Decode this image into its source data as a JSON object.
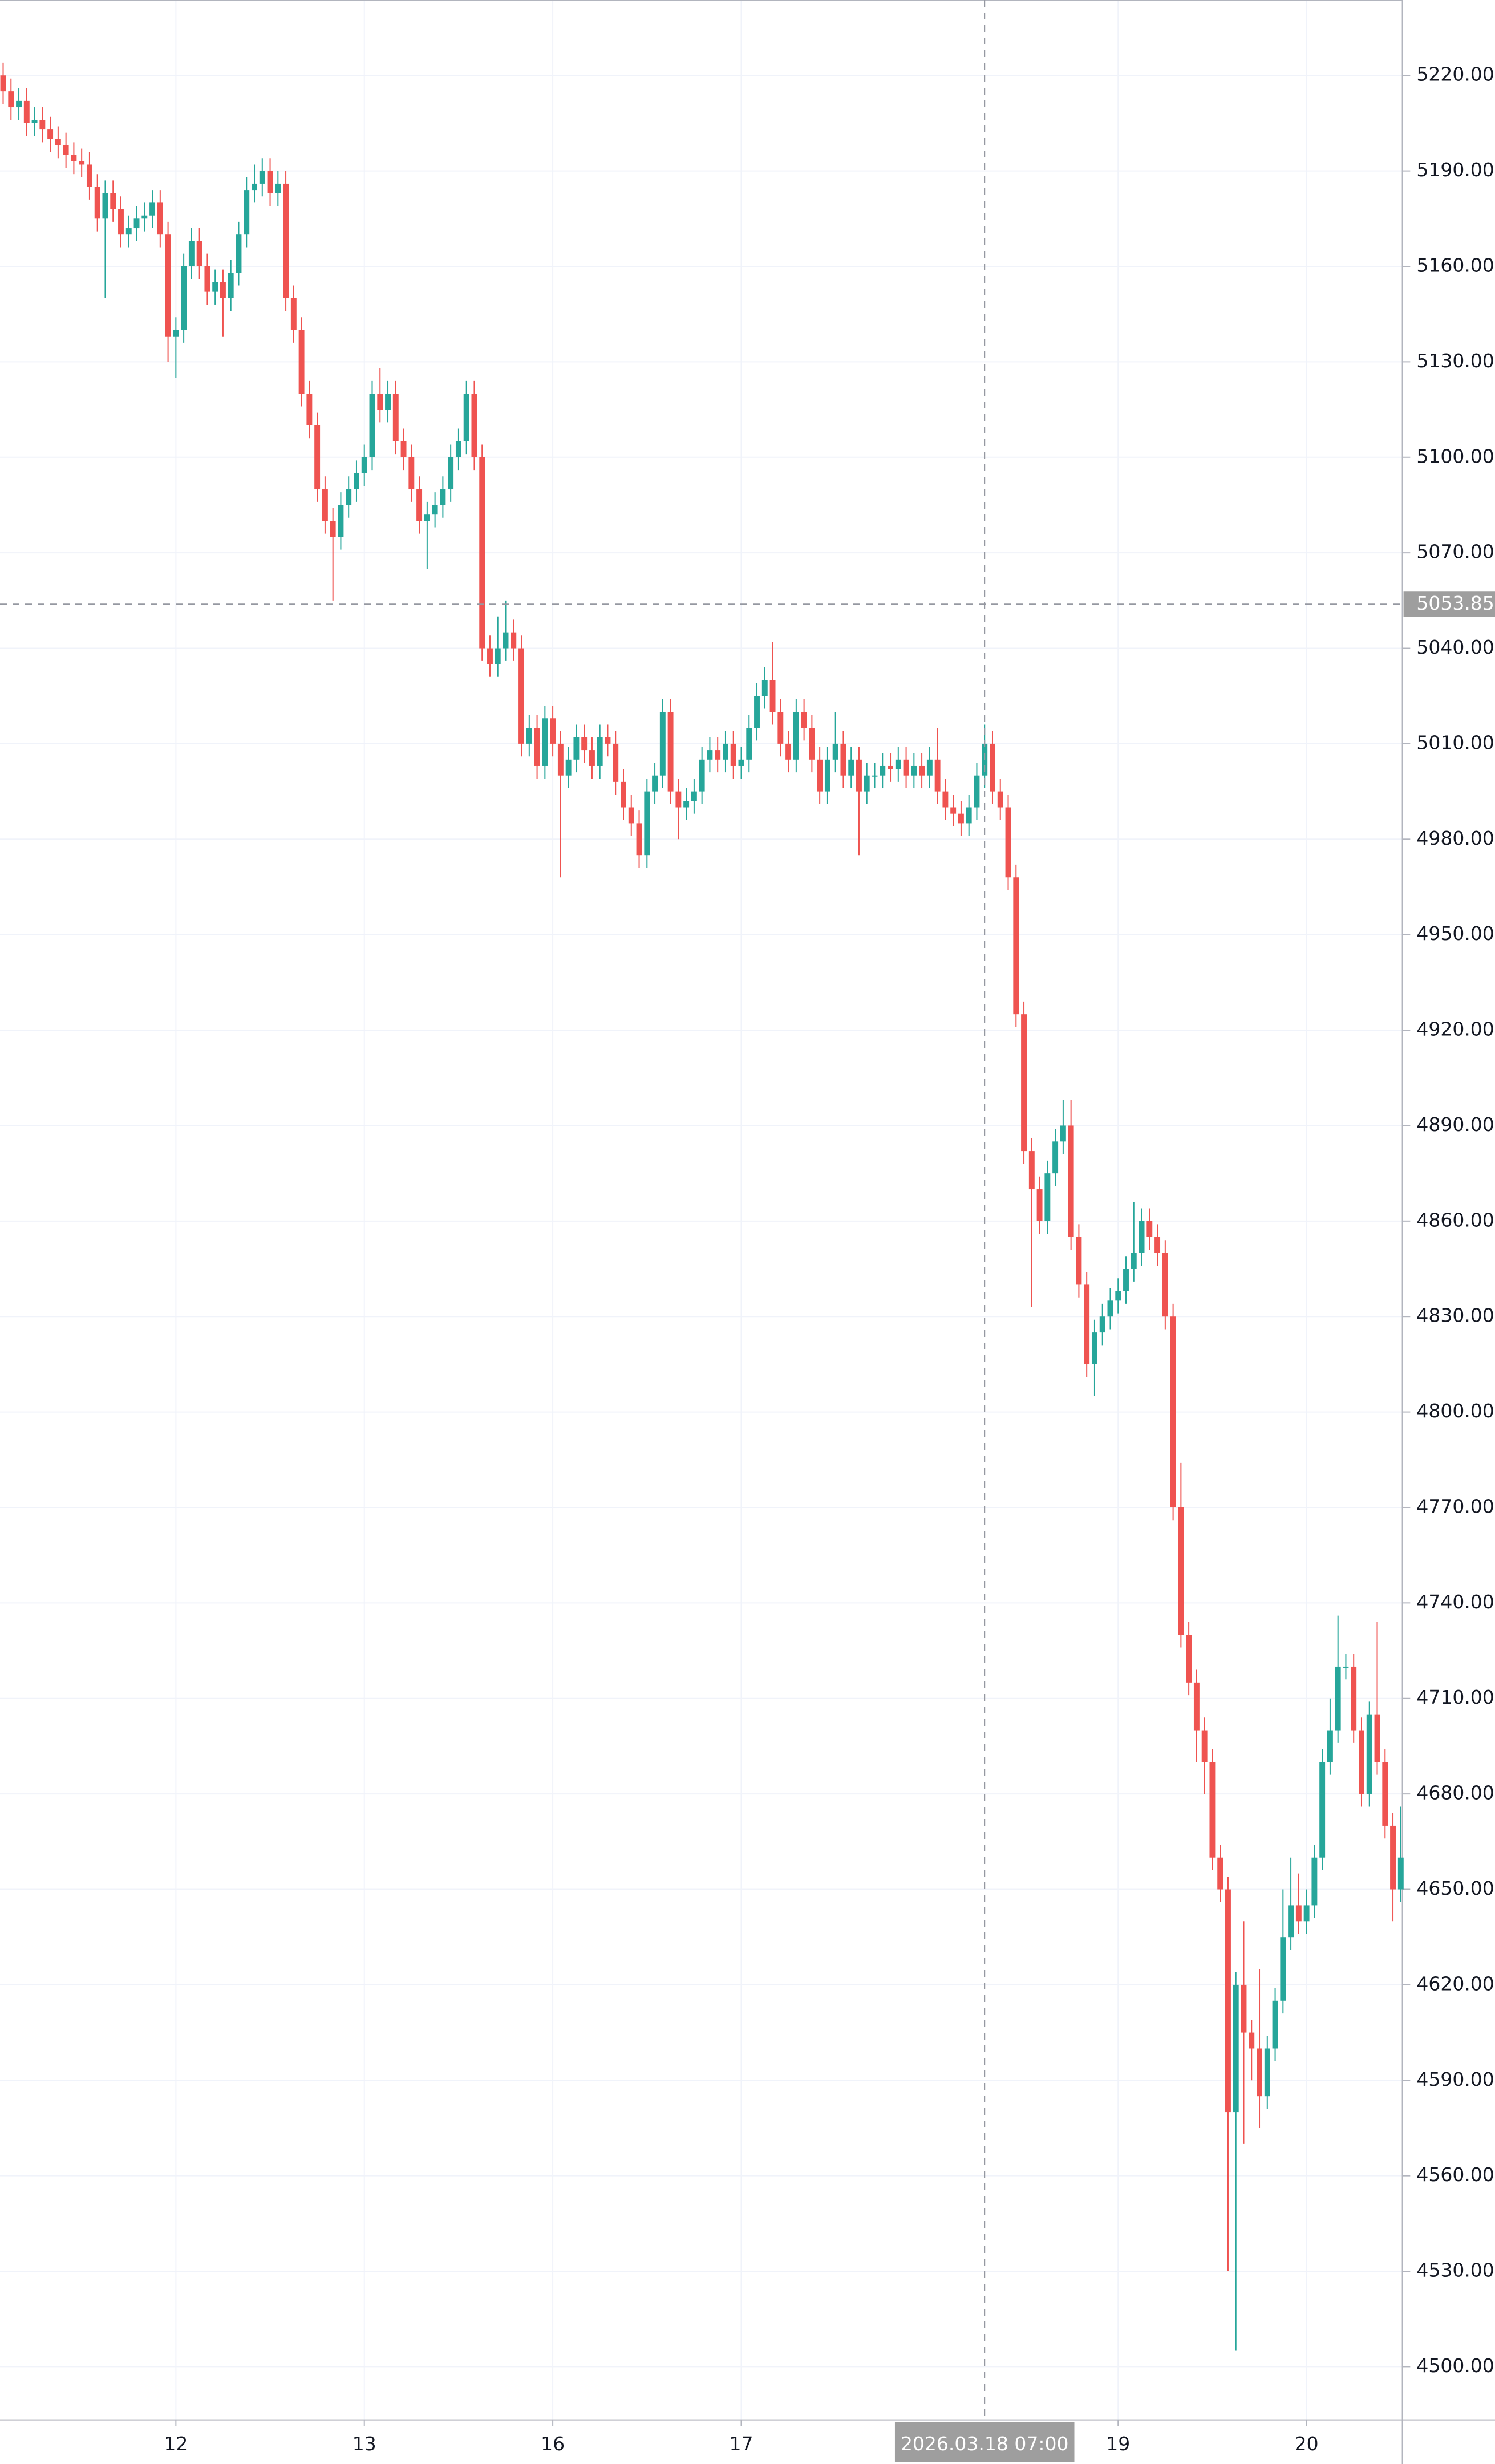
{
  "chart_data": {
    "type": "candlestick",
    "up_color": "#26a69a",
    "down_color": "#ef5350",
    "grid": true,
    "ylim": [
      4483.3,
      5243.7
    ],
    "yticks": [
      {
        "value": 4500,
        "label": "4500.00"
      },
      {
        "value": 4530,
        "label": "4530.00"
      },
      {
        "value": 4560,
        "label": "4560.00"
      },
      {
        "value": 4590,
        "label": "4590.00"
      },
      {
        "value": 4620,
        "label": "4620.00"
      },
      {
        "value": 4650,
        "label": "4650.00"
      },
      {
        "value": 4680,
        "label": "4680.00"
      },
      {
        "value": 4710,
        "label": "4710.00"
      },
      {
        "value": 4740,
        "label": "4740.00"
      },
      {
        "value": 4770,
        "label": "4770.00"
      },
      {
        "value": 4800,
        "label": "4800.00"
      },
      {
        "value": 4830,
        "label": "4830.00"
      },
      {
        "value": 4860,
        "label": "4860.00"
      },
      {
        "value": 4890,
        "label": "4890.00"
      },
      {
        "value": 4920,
        "label": "4920.00"
      },
      {
        "value": 4950,
        "label": "4950.00"
      },
      {
        "value": 4980,
        "label": "4980.00"
      },
      {
        "value": 5010,
        "label": "5010.00"
      },
      {
        "value": 5040,
        "label": "5040.00"
      },
      {
        "value": 5070,
        "label": "5070.00"
      },
      {
        "value": 5100,
        "label": "5100.00"
      },
      {
        "value": 5130,
        "label": "5130.00"
      },
      {
        "value": 5160,
        "label": "5160.00"
      },
      {
        "value": 5190,
        "label": "5190.00"
      },
      {
        "value": 5220,
        "label": "5220.00"
      }
    ],
    "crosshair": {
      "category": "2026.03.18 07:00",
      "y": 5053.85
    },
    "categories": [
      null,
      null,
      null,
      null,
      null,
      null,
      null,
      null,
      null,
      null,
      null,
      null,
      null,
      null,
      null,
      null,
      null,
      null,
      null,
      null,
      null,
      null,
      "12",
      null,
      null,
      null,
      null,
      null,
      null,
      null,
      null,
      null,
      null,
      null,
      null,
      null,
      null,
      null,
      null,
      null,
      null,
      null,
      null,
      null,
      null,
      null,
      "13",
      null,
      null,
      null,
      null,
      null,
      null,
      null,
      null,
      null,
      null,
      null,
      null,
      null,
      null,
      null,
      null,
      null,
      null,
      null,
      null,
      null,
      null,
      null,
      "16",
      null,
      null,
      null,
      null,
      null,
      null,
      null,
      null,
      null,
      null,
      null,
      null,
      null,
      null,
      null,
      null,
      null,
      null,
      null,
      null,
      null,
      null,
      null,
      "17",
      null,
      null,
      null,
      null,
      null,
      null,
      null,
      null,
      null,
      null,
      null,
      null,
      null,
      null,
      null,
      null,
      null,
      null,
      null,
      null,
      null,
      null,
      null,
      null,
      null,
      null,
      null,
      null,
      null,
      null,
      "2026.03.18 07:00",
      null,
      null,
      null,
      null,
      null,
      null,
      null,
      null,
      null,
      null,
      null,
      null,
      null,
      null,
      null,
      null,
      "19",
      null,
      null,
      null,
      null,
      null,
      null,
      null,
      null,
      null,
      null,
      null,
      null,
      null,
      null,
      null,
      null,
      null,
      null,
      null,
      null,
      null,
      null,
      null,
      "20",
      null,
      null,
      null,
      null,
      null,
      null,
      null,
      null,
      null,
      null,
      null,
      null
    ],
    "open": [
      5220,
      5215,
      5210,
      5212,
      5205,
      5206,
      5203,
      5200,
      5198,
      5195,
      5193,
      5192,
      5185,
      5175,
      5183,
      5178,
      5170,
      5172,
      5175,
      5176,
      5180,
      5170,
      5138,
      5140,
      5160,
      5168,
      5160,
      5152,
      5155,
      5150,
      5158,
      5170,
      5184,
      5186,
      5190,
      5183,
      5186,
      5150,
      5140,
      5120,
      5110,
      5090,
      5080,
      5075,
      5085,
      5090,
      5095,
      5100,
      5120,
      5115,
      5120,
      5105,
      5100,
      5090,
      5080,
      5082,
      5085,
      5090,
      5100,
      5105,
      5120,
      5100,
      5040,
      5035,
      5040,
      5045,
      5040,
      5010,
      5015,
      5003,
      5018,
      5010,
      5000,
      5005,
      5012,
      5008,
      5003,
      5012,
      5010,
      4998,
      4990,
      4985,
      4975,
      4995,
      5000,
      5020,
      4995,
      4990,
      4992,
      4995,
      5005,
      5008,
      5005,
      5010,
      5003,
      5005,
      5015,
      5025,
      5030,
      5020,
      5010,
      5005,
      5020,
      5015,
      5005,
      4995,
      5005,
      5010,
      5000,
      5005,
      4995,
      5000,
      5000,
      5003,
      5002,
      5005,
      5000,
      5003,
      5000,
      5005,
      4995,
      4990,
      4988,
      4985,
      4990,
      5000,
      5010,
      4995,
      4990,
      4968,
      4925,
      4882,
      4870,
      4860,
      4875,
      4885,
      4890,
      4855,
      4840,
      4815,
      4825,
      4830,
      4835,
      4838,
      4845,
      4850,
      4860,
      4855,
      4850,
      4830,
      4770,
      4730,
      4715,
      4700,
      4690,
      4660,
      4650,
      4580,
      4620,
      4605,
      4600,
      4585,
      4600,
      4615,
      4635,
      4645,
      4640,
      4645,
      4660,
      4690,
      4700,
      4720,
      4720,
      4700,
      4680,
      4705,
      4690,
      4670,
      4650
    ],
    "high": [
      5224,
      5219,
      5216,
      5216,
      5210,
      5210,
      5207,
      5204,
      5202,
      5199,
      5197,
      5196,
      5189,
      5187,
      5187,
      5182,
      5176,
      5179,
      5180,
      5184,
      5184,
      5174,
      5144,
      5164,
      5172,
      5172,
      5164,
      5159,
      5159,
      5162,
      5174,
      5188,
      5192,
      5194,
      5194,
      5190,
      5190,
      5154,
      5144,
      5124,
      5114,
      5094,
      5084,
      5089,
      5094,
      5099,
      5104,
      5124,
      5128,
      5124,
      5124,
      5109,
      5104,
      5094,
      5086,
      5089,
      5094,
      5104,
      5109,
      5124,
      5124,
      5104,
      5044,
      5050,
      5055,
      5049,
      5044,
      5019,
      5019,
      5022,
      5022,
      5014,
      5009,
      5016,
      5016,
      5012,
      5016,
      5016,
      5014,
      5002,
      4994,
      4989,
      4999,
      5004,
      5024,
      5024,
      4999,
      4996,
      4999,
      5009,
      5012,
      5012,
      5014,
      5014,
      5009,
      5019,
      5029,
      5034,
      5042,
      5024,
      5014,
      5024,
      5024,
      5019,
      5009,
      5009,
      5020,
      5014,
      5009,
      5009,
      5004,
      5004,
      5007,
      5007,
      5009,
      5009,
      5007,
      5007,
      5009,
      5015,
      4999,
      4994,
      4992,
      4994,
      5004,
      5016,
      5014,
      4999,
      4994,
      4972,
      4929,
      4886,
      4874,
      4879,
      4889,
      4898,
      4898,
      4859,
      4844,
      4829,
      4834,
      4839,
      4842,
      4849,
      4866,
      4864,
      4864,
      4859,
      4854,
      4834,
      4784,
      4734,
      4719,
      4704,
      4694,
      4664,
      4654,
      4624,
      4640,
      4609,
      4625,
      4604,
      4619,
      4650,
      4660,
      4655,
      4650,
      4664,
      4694,
      4710,
      4736,
      4724,
      4724,
      4704,
      4709,
      4734,
      4694,
      4674,
      4676
    ],
    "low": [
      5211,
      5206,
      5206,
      5201,
      5201,
      5199,
      5196,
      5194,
      5191,
      5189,
      5188,
      5181,
      5171,
      5150,
      5174,
      5166,
      5166,
      5168,
      5171,
      5172,
      5166,
      5130,
      5125,
      5136,
      5156,
      5156,
      5148,
      5148,
      5138,
      5146,
      5154,
      5166,
      5180,
      5182,
      5179,
      5179,
      5146,
      5136,
      5116,
      5106,
      5086,
      5076,
      5055,
      5071,
      5081,
      5086,
      5091,
      5096,
      5111,
      5111,
      5101,
      5096,
      5086,
      5076,
      5065,
      5078,
      5081,
      5086,
      5096,
      5101,
      5096,
      5036,
      5031,
      5031,
      5036,
      5036,
      5006,
      5006,
      4999,
      4999,
      5006,
      4968,
      4996,
      5001,
      5004,
      4999,
      4999,
      5006,
      4994,
      4986,
      4981,
      4971,
      4971,
      4991,
      4996,
      4991,
      4980,
      4986,
      4988,
      4991,
      5001,
      5001,
      5001,
      4999,
      4999,
      5001,
      5011,
      5021,
      5016,
      5006,
      5001,
      5001,
      5011,
      5001,
      4991,
      4991,
      5001,
      4996,
      4996,
      4975,
      4991,
      4996,
      4996,
      4998,
      4998,
      4996,
      4996,
      4996,
      4996,
      4991,
      4986,
      4984,
      4981,
      4981,
      4986,
      4996,
      4991,
      4986,
      4964,
      4921,
      4878,
      4833,
      4856,
      4856,
      4871,
      4881,
      4851,
      4836,
      4811,
      4805,
      4821,
      4826,
      4831,
      4834,
      4841,
      4846,
      4851,
      4846,
      4826,
      4766,
      4726,
      4711,
      4690,
      4680,
      4656,
      4646,
      4530,
      4505,
      4570,
      4590,
      4575,
      4581,
      4596,
      4611,
      4631,
      4636,
      4636,
      4641,
      4656,
      4686,
      4696,
      4716,
      4696,
      4676,
      4676,
      4686,
      4666,
      4640,
      4646
    ],
    "close": [
      5215,
      5210,
      5212,
      5205,
      5206,
      5203,
      5200,
      5198,
      5195,
      5193,
      5192,
      5185,
      5175,
      5183,
      5178,
      5170,
      5172,
      5175,
      5176,
      5180,
      5170,
      5138,
      5140,
      5160,
      5168,
      5160,
      5152,
      5155,
      5150,
      5158,
      5170,
      5184,
      5186,
      5190,
      5183,
      5186,
      5150,
      5140,
      5120,
      5110,
      5090,
      5080,
      5075,
      5085,
      5090,
      5095,
      5100,
      5120,
      5115,
      5120,
      5105,
      5100,
      5090,
      5080,
      5082,
      5085,
      5090,
      5100,
      5105,
      5120,
      5100,
      5040,
      5035,
      5040,
      5045,
      5040,
      5010,
      5015,
      5003,
      5018,
      5010,
      5000,
      5005,
      5012,
      5008,
      5003,
      5012,
      5010,
      4998,
      4990,
      4985,
      4975,
      4995,
      5000,
      5020,
      4995,
      4990,
      4992,
      4995,
      5005,
      5008,
      5005,
      5010,
      5003,
      5005,
      5015,
      5025,
      5030,
      5020,
      5010,
      5005,
      5020,
      5015,
      5005,
      4995,
      5005,
      5010,
      5000,
      5005,
      4995,
      5000,
      5000,
      5003,
      5002,
      5005,
      5000,
      5003,
      5000,
      5005,
      4995,
      4990,
      4988,
      4985,
      4990,
      5000,
      5010,
      4995,
      4990,
      4968,
      4925,
      4882,
      4870,
      4860,
      4875,
      4885,
      4890,
      4855,
      4840,
      4815,
      4825,
      4830,
      4835,
      4838,
      4845,
      4850,
      4860,
      4855,
      4850,
      4830,
      4770,
      4730,
      4715,
      4700,
      4690,
      4660,
      4650,
      4580,
      4620,
      4605,
      4600,
      4585,
      4600,
      4615,
      4635,
      4645,
      4640,
      4645,
      4660,
      4690,
      4700,
      4720,
      4720,
      4700,
      4680,
      4705,
      4690,
      4670,
      4650,
      4660
    ]
  }
}
